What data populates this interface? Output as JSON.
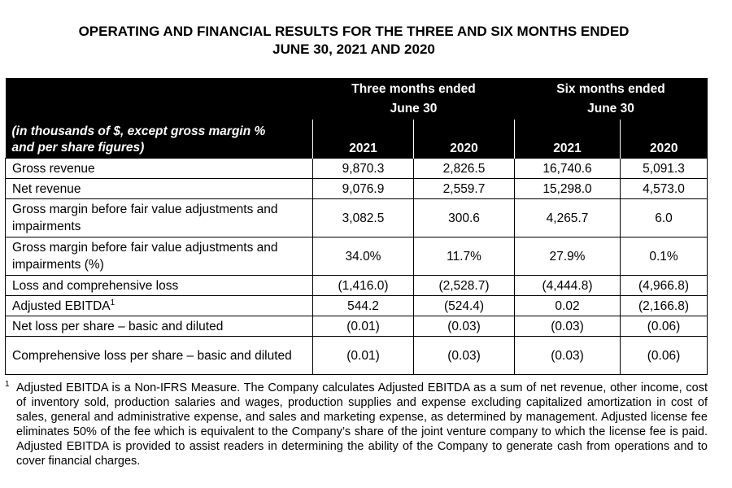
{
  "title": {
    "line1": "OPERATING AND FINANCIAL RESULTS FOR THE THREE AND SIX MONTHS ENDED",
    "line2": "JUNE 30, 2021 AND 2020"
  },
  "table": {
    "group_headers": [
      {
        "line1": "Three months ended",
        "line2": "June 30"
      },
      {
        "line1": "Six months ended",
        "line2": "June 30"
      }
    ],
    "row_label_header": {
      "line1": "(in thousands of $, except gross margin %",
      "line2": "and per share figures)"
    },
    "years": [
      "2021",
      "2020",
      "2021",
      "2020"
    ],
    "rows": [
      {
        "label": "Gross revenue",
        "values": [
          "9,870.3",
          "2,826.5",
          "16,740.6",
          "5,091.3"
        ]
      },
      {
        "label": "Net revenue",
        "values": [
          "9,076.9",
          "2,559.7",
          "15,298.0",
          "4,573.0"
        ]
      },
      {
        "label": "Gross margin before fair value adjustments and impairments",
        "values": [
          "3,082.5",
          "300.6",
          "4,265.7",
          "6.0"
        ]
      },
      {
        "label": "Gross margin before fair value adjustments and impairments (%)",
        "values": [
          "34.0%",
          "11.7%",
          "27.9%",
          "0.1%"
        ]
      },
      {
        "label": "Loss and comprehensive loss",
        "values": [
          "(1,416.0)",
          "(2,528.7)",
          "(4,444.8)",
          "(4,966.8)"
        ]
      },
      {
        "label": "Adjusted EBITDA",
        "footnote_mark": "1",
        "values": [
          "544.2",
          "(524.4)",
          "0.02",
          "(2,166.8)"
        ]
      },
      {
        "label": "Net loss per share – basic and diluted",
        "values": [
          "(0.01)",
          "(0.03)",
          "(0.03)",
          "(0.06)"
        ]
      },
      {
        "label": "Comprehensive loss per share – basic and diluted",
        "values": [
          "(0.01)",
          "(0.03)",
          "(0.03)",
          "(0.06)"
        ]
      }
    ]
  },
  "footnote": {
    "mark": "1",
    "text": "Adjusted EBITDA is a Non-IFRS Measure. The Company calculates Adjusted EBITDA as a sum of net revenue, other income, cost of inventory sold, production salaries and wages, production supplies and expense excluding capitalized amortization in cost of sales, general and administrative expense, and sales and marketing expense, as determined by management. Adjusted license fee eliminates 50% of the fee which is equivalent to the Company’s share of the joint venture company to which the license fee is paid. Adjusted EBITDA is provided to assist readers in determining the ability of the Company to generate cash from operations and to cover financial charges."
  }
}
